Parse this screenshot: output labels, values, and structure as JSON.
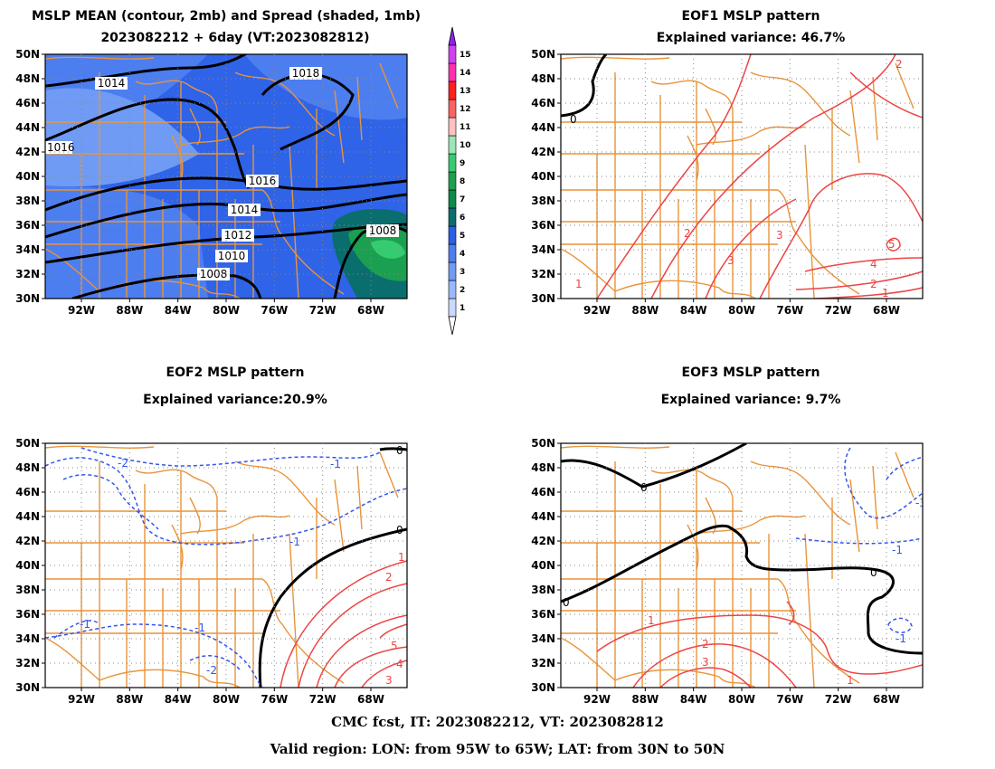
{
  "panel1": {
    "title1": "MSLP MEAN (contour, 2mb) and Spread (shaded, 1mb)",
    "title2": "2023082212 + 6day (VT:2023082812)",
    "contours": [
      "1018",
      "1014",
      "1016",
      "1016",
      "1014",
      "1012",
      "1010",
      "1008",
      "1008"
    ],
    "colorbar": {
      "labels": [
        "1",
        "2",
        "3",
        "4",
        "5",
        "6",
        "7",
        "8",
        "9",
        "10",
        "11",
        "12",
        "13",
        "14",
        "15"
      ],
      "colors": [
        "#c8d8ff",
        "#9ab8ff",
        "#6f9bf5",
        "#4d7ef0",
        "#2a5fe6",
        "#0a6e6e",
        "#0f8a4a",
        "#1aa050",
        "#35cc70",
        "#9ae6b4",
        "#ffc0c0",
        "#ff6060",
        "#ff2020",
        "#ff30b0",
        "#d040f0",
        "#9020f0"
      ]
    }
  },
  "panel2": {
    "title1": "EOF1 MSLP pattern",
    "title2": "Explained variance: 46.7%",
    "contours": [
      "0",
      "2",
      "2",
      "3",
      "3",
      "5",
      "4",
      "2",
      "1",
      "1"
    ]
  },
  "panel3": {
    "title1": "EOF2 MSLP pattern",
    "title2": "Explained variance:20.9%",
    "contours": [
      "0",
      "0",
      "-2",
      "-1",
      "-1",
      "-1",
      "-1",
      "-2",
      "1",
      "2",
      "5",
      "4",
      "3"
    ]
  },
  "panel4": {
    "title1": "EOF3 MSLP pattern",
    "title2": "Explained variance: 9.7%",
    "contours": [
      "0",
      "0",
      "0",
      "-1",
      "-1",
      "-3",
      "1",
      "2",
      "3",
      "1"
    ]
  },
  "axes": {
    "lat_labels": [
      "50N",
      "48N",
      "46N",
      "44N",
      "42N",
      "40N",
      "38N",
      "36N",
      "34N",
      "32N",
      "30N"
    ],
    "lon_labels": [
      "92W",
      "88W",
      "84W",
      "80W",
      "76W",
      "72W",
      "68W"
    ]
  },
  "colors": {
    "border": "#e8943a",
    "negative": "#3355ee",
    "positive": "#ee4444",
    "zero": "#000000"
  },
  "footer": {
    "line1": "CMC fcst, IT: 2023082212, VT: 2023082812",
    "line2": "Valid region: LON: from 95W to 65W; LAT: from 30N to 50N"
  }
}
